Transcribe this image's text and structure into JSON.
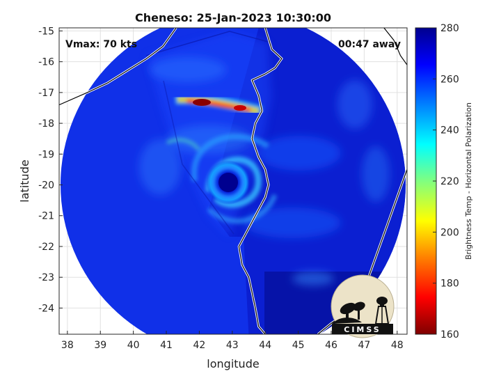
{
  "figure": {
    "title": "Cheneso: 25-Jan-2023 10:30:00",
    "vmax_label": "Vmax: 70 kts",
    "time_away_label": "00:47 away",
    "logo_text": "CIMSS"
  },
  "axes": {
    "xlabel": "longitude",
    "ylabel": "latitude",
    "xlim": [
      37.75,
      48.3
    ],
    "ylim": [
      -24.85,
      -14.9
    ],
    "xticks": [
      "38",
      "39",
      "40",
      "41",
      "42",
      "43",
      "44",
      "45",
      "46",
      "47",
      "48"
    ],
    "yticks": [
      "-15",
      "-16",
      "-17",
      "-18",
      "-19",
      "-20",
      "-21",
      "-22",
      "-23",
      "-24"
    ],
    "grid": true
  },
  "colorbar": {
    "label": "Brightness Temp - Horizontal Polarization",
    "ticks": [
      "280",
      "260",
      "240",
      "220",
      "200",
      "180",
      "160"
    ],
    "range": [
      160,
      280
    ],
    "colormap": "jet-reversed",
    "colors": [
      "#7f0000",
      "#ff0000",
      "#ff8000",
      "#ffff00",
      "#80ff80",
      "#00ffff",
      "#0080ff",
      "#0000ff",
      "#00008f"
    ]
  },
  "chart_data": {
    "type": "heatmap",
    "title": "Cheneso: 25-Jan-2023 10:30:00",
    "xlabel": "longitude",
    "ylabel": "latitude",
    "xlim": [
      37.75,
      48.3
    ],
    "ylim": [
      -24.85,
      -14.9
    ],
    "storm_center": {
      "lon": 43.0,
      "lat": -20.0
    },
    "swath_center": {
      "lon": 43.0,
      "lat": -19.9
    },
    "swath_radius_deg": 5.2,
    "zlabel": "Brightness Temp - Horizontal Polarization",
    "zlim": [
      160,
      280
    ],
    "min_temp_region": {
      "lon": 42.2,
      "lat": -17.3,
      "value": 165
    }
  },
  "coastline": {
    "madagascar": [
      [
        44.0,
        -14.9
      ],
      [
        44.2,
        -15.6
      ],
      [
        44.5,
        -15.9
      ],
      [
        44.3,
        -16.2
      ],
      [
        44.0,
        -16.4
      ],
      [
        43.6,
        -16.6
      ],
      [
        43.8,
        -17.1
      ],
      [
        43.9,
        -17.6
      ],
      [
        43.7,
        -18.0
      ],
      [
        43.6,
        -18.5
      ],
      [
        43.8,
        -19.1
      ],
      [
        44.0,
        -19.5
      ],
      [
        44.1,
        -20.0
      ],
      [
        44.0,
        -20.4
      ],
      [
        43.8,
        -20.8
      ],
      [
        43.6,
        -21.2
      ],
      [
        43.4,
        -21.6
      ],
      [
        43.2,
        -22.0
      ],
      [
        43.3,
        -22.6
      ],
      [
        43.5,
        -23.0
      ],
      [
        43.6,
        -23.5
      ],
      [
        43.7,
        -24.0
      ],
      [
        43.8,
        -24.6
      ],
      [
        44.0,
        -24.85
      ]
    ],
    "mozambique": [
      [
        37.75,
        -17.4
      ],
      [
        38.6,
        -17.0
      ],
      [
        39.2,
        -16.7
      ],
      [
        39.8,
        -16.3
      ],
      [
        40.4,
        -15.9
      ],
      [
        40.9,
        -15.5
      ],
      [
        41.3,
        -14.9
      ]
    ],
    "east": [
      [
        47.6,
        -14.9
      ],
      [
        47.9,
        -15.3
      ],
      [
        48.1,
        -15.8
      ],
      [
        48.3,
        -16.1
      ]
    ],
    "southeast": [
      [
        48.3,
        -19.5
      ],
      [
        48.0,
        -20.4
      ],
      [
        47.7,
        -21.3
      ],
      [
        47.4,
        -22.2
      ],
      [
        47.1,
        -23.1
      ],
      [
        46.8,
        -23.7
      ],
      [
        46.4,
        -24.2
      ],
      [
        46.0,
        -24.5
      ],
      [
        45.6,
        -24.85
      ]
    ]
  }
}
